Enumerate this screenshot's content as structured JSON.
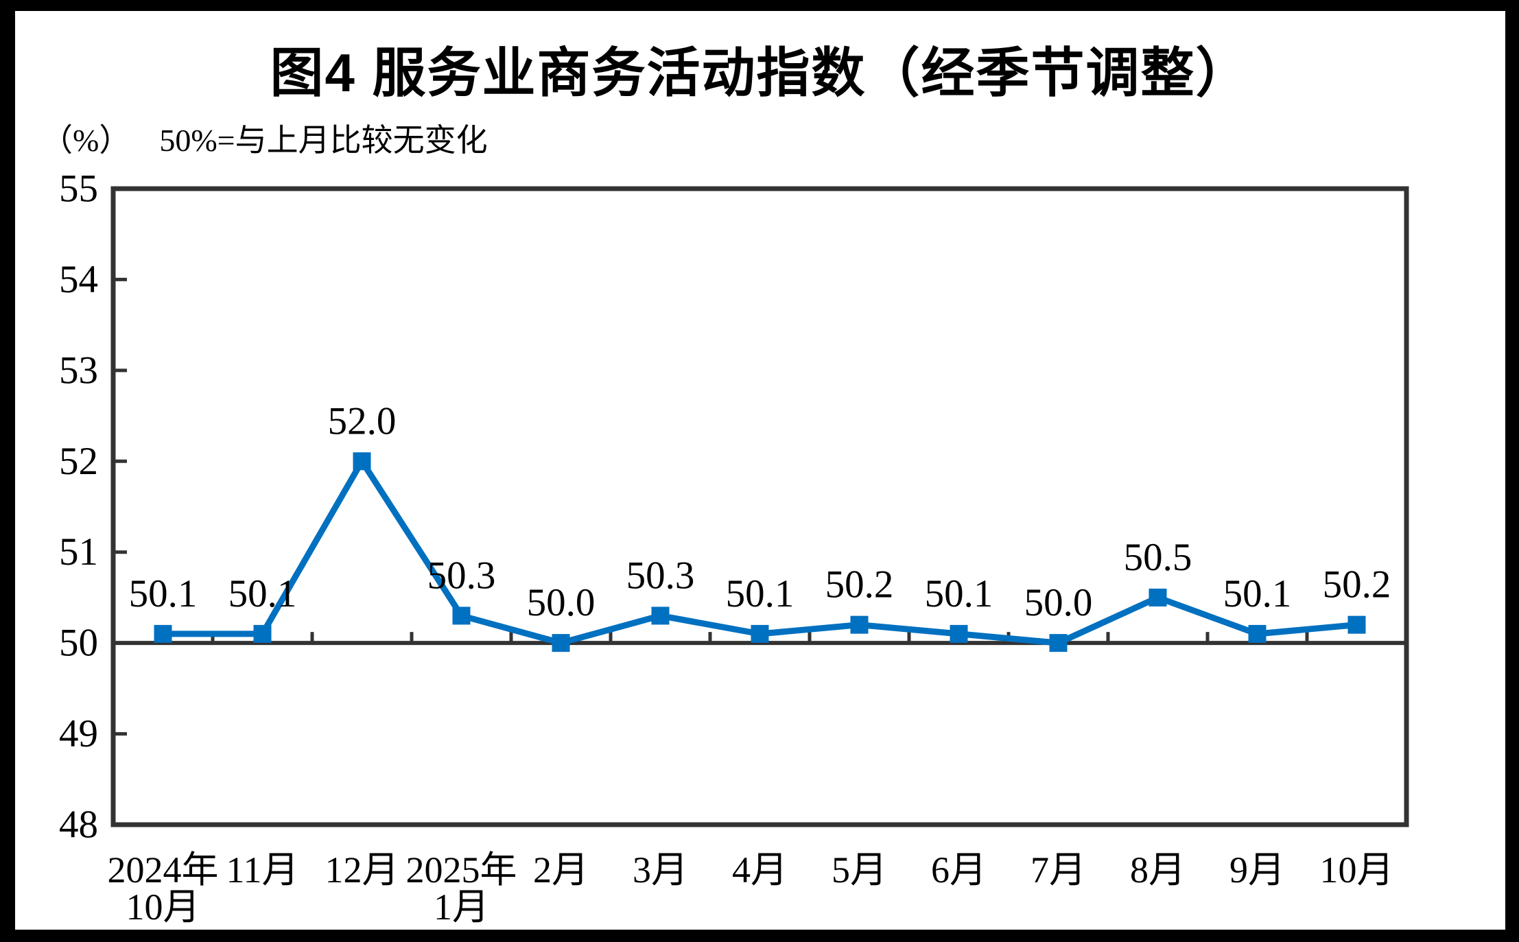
{
  "page": {
    "title": "图4 服务业商务活动指数（经季节调整）",
    "unit_label": "（%）",
    "subtitle": "50%=与上月比较无变化"
  },
  "colors": {
    "line": "#0070C0",
    "marker": "#0070C0",
    "axis": "#333333",
    "reference_line": "#333333",
    "text": "#000000",
    "background": "#FFFFFF",
    "frame": "#000000"
  },
  "chart_data": {
    "type": "line",
    "title": "图4 服务业商务活动指数（经季节调整）",
    "unit_label": "（%）",
    "subtitle": "50%=与上月比较无变化",
    "categories": [
      [
        "2024年",
        "10月"
      ],
      [
        "11月"
      ],
      [
        "12月"
      ],
      [
        "2025年",
        "1月"
      ],
      [
        "2月"
      ],
      [
        "3月"
      ],
      [
        "4月"
      ],
      [
        "5月"
      ],
      [
        "6月"
      ],
      [
        "7月"
      ],
      [
        "8月"
      ],
      [
        "9月"
      ],
      [
        "10月"
      ]
    ],
    "series": [
      {
        "name": "服务业商务活动指数",
        "values": [
          50.1,
          50.1,
          52.0,
          50.3,
          50.0,
          50.3,
          50.1,
          50.2,
          50.1,
          50.0,
          50.5,
          50.1,
          50.2
        ],
        "data_labels": [
          "50.1",
          "50.1",
          "52.0",
          "50.3",
          "50.0",
          "50.3",
          "50.1",
          "50.2",
          "50.1",
          "50.0",
          "50.5",
          "50.1",
          "50.2"
        ]
      }
    ],
    "ylim": [
      48,
      55
    ],
    "yticks": [
      48,
      49,
      50,
      51,
      52,
      53,
      54,
      55
    ],
    "reference_line": 50,
    "marker": "square",
    "grid": false,
    "legend": null,
    "xlabel": "",
    "ylabel": "（%）"
  }
}
